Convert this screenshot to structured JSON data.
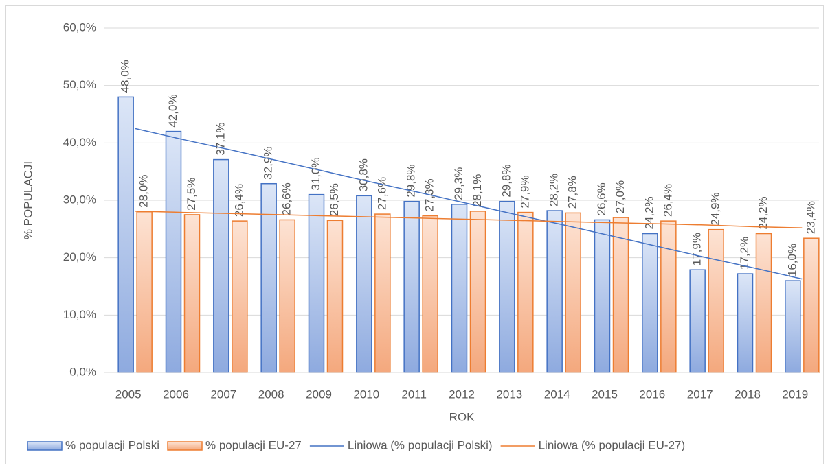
{
  "chart_data": {
    "type": "bar",
    "y_label": "% POPULACJI",
    "x_label": "ROK",
    "categories": [
      "2005",
      "2006",
      "2007",
      "2008",
      "2009",
      "2010",
      "2011",
      "2012",
      "2013",
      "2014",
      "2015",
      "2016",
      "2017",
      "2018",
      "2019"
    ],
    "series": [
      {
        "name": "% populacji Polski",
        "color": "#4472c4",
        "values": [
          48.0,
          42.0,
          37.1,
          32.9,
          31.0,
          30.8,
          29.8,
          29.3,
          29.8,
          28.2,
          26.6,
          24.2,
          17.9,
          17.2,
          16.0
        ],
        "value_labels": [
          "48,0%",
          "42,0%",
          "37,1%",
          "32,9%",
          "31,0%",
          "30,8%",
          "29,8%",
          "29,3%",
          "29,8%",
          "28,2%",
          "26,6%",
          "24,2%",
          "17,9%",
          "17,2%",
          "16,0%"
        ]
      },
      {
        "name": "% populacji EU-27",
        "color": "#ed7d31",
        "values": [
          28.0,
          27.5,
          26.4,
          26.6,
          26.5,
          27.6,
          27.3,
          28.1,
          27.9,
          27.8,
          27.0,
          26.4,
          24.9,
          24.2,
          23.4
        ],
        "value_labels": [
          "28,0%",
          "27,5%",
          "26,4%",
          "26,6%",
          "26,5%",
          "27,6%",
          "27,3%",
          "28,1%",
          "27,9%",
          "27,8%",
          "27,0%",
          "26,4%",
          "24,9%",
          "24,2%",
          "23,4%"
        ]
      }
    ],
    "trendlines": [
      {
        "name": "Liniowa (% populacji Polski)",
        "color": "#4472c4",
        "values": [
          42.5,
          40.6,
          38.8,
          36.9,
          35.0,
          33.1,
          31.3,
          29.4,
          27.5,
          25.7,
          23.8,
          21.9,
          20.0,
          18.2,
          16.3
        ]
      },
      {
        "name": "Liniowa (% populacji EU-27)",
        "color": "#ed7d31",
        "values": [
          28.1,
          27.9,
          27.7,
          27.5,
          27.3,
          27.1,
          26.9,
          26.7,
          26.5,
          26.3,
          26.1,
          25.9,
          25.7,
          25.4,
          25.2
        ]
      }
    ],
    "ylim": [
      0,
      60
    ],
    "yticks": [
      {
        "value": 0,
        "label": "0,0%"
      },
      {
        "value": 10,
        "label": "10,0%"
      },
      {
        "value": 20,
        "label": "20,0%"
      },
      {
        "value": 30,
        "label": "30,0%"
      },
      {
        "value": 40,
        "label": "40,0%"
      },
      {
        "value": 50,
        "label": "50,0%"
      },
      {
        "value": 60,
        "label": "60,0%"
      }
    ],
    "grid": true,
    "legend": "bottom"
  }
}
